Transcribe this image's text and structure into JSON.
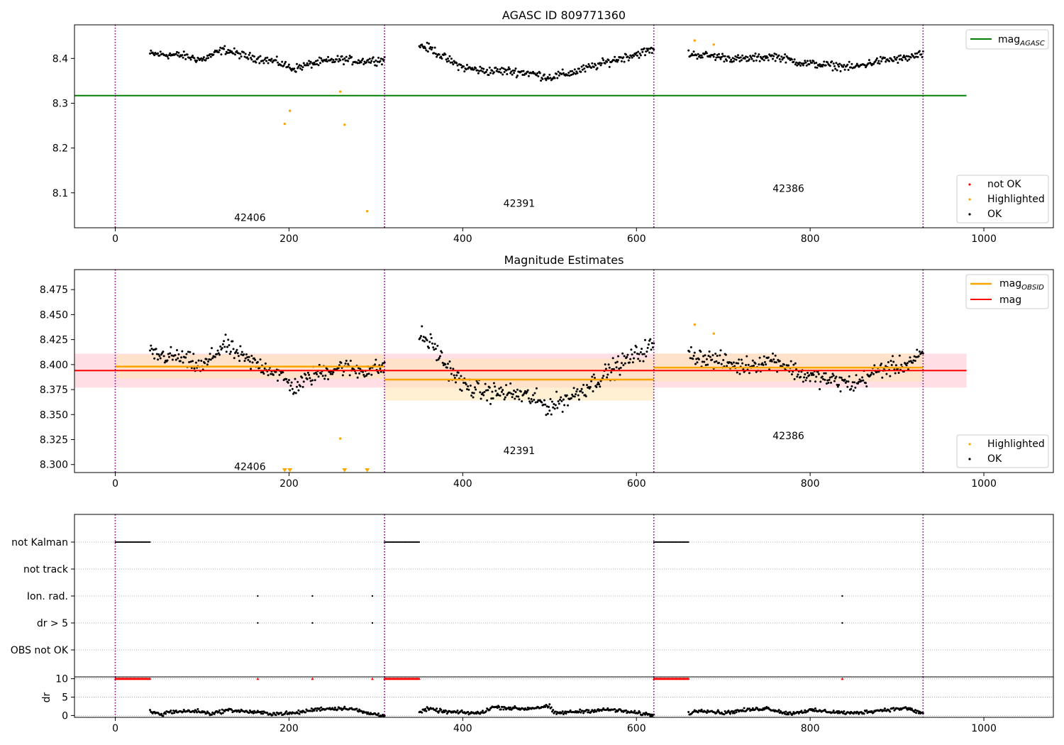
{
  "figure": {
    "background": "#ffffff"
  },
  "colors": {
    "ok": "#000000",
    "highlighted": "#ffa500",
    "not_ok": "#ff0000",
    "mag_agasc": "#008000",
    "mag": "#ff0000",
    "mag_obsid": "#ffa500",
    "obs_boundary": "#800080",
    "mag_band": "#ffc0cb",
    "obsid_band": "#ffe4b5"
  },
  "chart_data": [
    {
      "type": "scatter",
      "title": "AGASC ID 809771360",
      "xlabel": "",
      "ylabel": "",
      "xlim": [
        -47,
        1080
      ],
      "ylim": [
        8.022,
        8.475
      ],
      "xticks": [
        0,
        200,
        400,
        600,
        800,
        1000
      ],
      "yticks": [
        8.1,
        8.2,
        8.3,
        8.4
      ],
      "obs_boundaries": [
        0,
        310,
        620,
        930
      ],
      "obsid_labels": [
        {
          "text": "42406",
          "x": 155,
          "y": 8.045
        },
        {
          "text": "42391",
          "x": 465,
          "y": 8.077
        },
        {
          "text": "42386",
          "x": 775,
          "y": 8.11
        }
      ],
      "mag_agasc": {
        "value": 8.317,
        "x_range": [
          -47,
          980
        ]
      },
      "legend_upper": {
        "position": "top-right",
        "entries": [
          "mag_AGASC"
        ],
        "label_main": "mag",
        "label_sub": "AGASC"
      },
      "legend_lower": {
        "position": "bottom-right",
        "entries": [
          "not OK",
          "Highlighted",
          "OK"
        ]
      },
      "highlighted_points": {
        "x": [
          195,
          201,
          259,
          264,
          290,
          667,
          689
        ],
        "y": [
          8.254,
          8.283,
          8.326,
          8.252,
          8.059,
          8.44,
          8.431
        ]
      },
      "series_ok": [
        {
          "x_range": [
            40,
            310
          ],
          "knots_x": [
            40,
            75,
            100,
            125,
            150,
            185,
            205,
            230,
            260,
            280,
            310
          ],
          "knots_y": [
            8.41,
            8.407,
            8.397,
            8.42,
            8.405,
            8.393,
            8.377,
            8.39,
            8.398,
            8.394,
            8.397
          ],
          "noise": 0.0055
        },
        {
          "x_range": [
            350,
            620
          ],
          "knots_x": [
            350,
            365,
            380,
            400,
            425,
            450,
            475,
            500,
            525,
            550,
            575,
            600,
            620
          ],
          "knots_y": [
            8.43,
            8.42,
            8.4,
            8.38,
            8.372,
            8.372,
            8.368,
            8.358,
            8.368,
            8.382,
            8.397,
            8.41,
            8.42
          ],
          "noise": 0.006
        },
        {
          "x_range": [
            660,
            930
          ],
          "knots_x": [
            660,
            690,
            720,
            760,
            790,
            820,
            850,
            880,
            910,
            930
          ],
          "knots_y": [
            8.41,
            8.405,
            8.398,
            8.405,
            8.39,
            8.385,
            8.38,
            8.395,
            8.4,
            8.41
          ],
          "noise": 0.0055
        }
      ]
    },
    {
      "type": "scatter",
      "title": "Magnitude Estimates",
      "xlabel": "",
      "ylabel": "",
      "xlim": [
        -47,
        1080
      ],
      "ylim": [
        8.292,
        8.495
      ],
      "xticks": [
        0,
        200,
        400,
        600,
        800,
        1000
      ],
      "yticks": [
        8.3,
        8.325,
        8.35,
        8.375,
        8.4,
        8.425,
        8.45,
        8.475
      ],
      "ytick_labels": [
        "8.300",
        "8.325",
        "8.350",
        "8.375",
        "8.400",
        "8.425",
        "8.450",
        "8.475"
      ],
      "obs_boundaries": [
        0,
        310,
        620,
        930
      ],
      "obsid_labels": [
        {
          "text": "42406",
          "x": 155,
          "y": 8.298
        },
        {
          "text": "42391",
          "x": 465,
          "y": 8.314
        },
        {
          "text": "42386",
          "x": 775,
          "y": 8.329
        }
      ],
      "mag": {
        "value": 8.394,
        "band": [
          8.377,
          8.411
        ],
        "x_range": [
          -47,
          980
        ]
      },
      "mag_obsid": [
        {
          "x_range": [
            0,
            310
          ],
          "value": 8.398,
          "band": [
            8.386,
            8.41
          ]
        },
        {
          "x_range": [
            310,
            620
          ],
          "value": 8.385,
          "band": [
            8.364,
            8.406
          ]
        },
        {
          "x_range": [
            620,
            930
          ],
          "value": 8.397,
          "band": [
            8.383,
            8.411
          ]
        }
      ],
      "legend_upper": {
        "position": "top-right",
        "entries": [
          "mag_OBSID",
          "mag"
        ],
        "label_main": "mag",
        "label_sub": "OBSID",
        "label_mag": "mag"
      },
      "legend_lower": {
        "position": "bottom-right",
        "entries": [
          "Highlighted",
          "OK"
        ]
      },
      "highlighted_points": {
        "x": [
          259,
          667,
          689
        ],
        "y": [
          8.326,
          8.44,
          8.431
        ]
      },
      "off_scale_markers": {
        "x": [
          195,
          201,
          264,
          290
        ]
      },
      "series_ok": [
        {
          "x_range": [
            40,
            310
          ],
          "knots_x": [
            40,
            75,
            100,
            125,
            150,
            185,
            205,
            230,
            260,
            280,
            310
          ],
          "knots_y": [
            8.41,
            8.407,
            8.397,
            8.42,
            8.405,
            8.393,
            8.377,
            8.39,
            8.398,
            8.394,
            8.397
          ],
          "noise": 0.0055
        },
        {
          "x_range": [
            350,
            620
          ],
          "knots_x": [
            350,
            365,
            380,
            400,
            425,
            450,
            475,
            500,
            525,
            550,
            575,
            600,
            620
          ],
          "knots_y": [
            8.43,
            8.42,
            8.4,
            8.38,
            8.372,
            8.372,
            8.368,
            8.358,
            8.368,
            8.382,
            8.397,
            8.41,
            8.42
          ],
          "noise": 0.006
        },
        {
          "x_range": [
            660,
            930
          ],
          "knots_x": [
            660,
            690,
            720,
            760,
            790,
            820,
            850,
            880,
            910,
            930
          ],
          "knots_y": [
            8.41,
            8.405,
            8.398,
            8.405,
            8.39,
            8.385,
            8.38,
            8.395,
            8.4,
            8.41
          ],
          "noise": 0.0055
        }
      ]
    },
    {
      "type": "scatter",
      "title": "",
      "xlabel": "",
      "ylabel": "",
      "xlim": [
        -47,
        1080
      ],
      "grid": "horizontal-dotted",
      "obs_boundaries": [
        0,
        310,
        620,
        930
      ],
      "categories": [
        "not Kalman",
        "not track",
        "Ion. rad.",
        "dr > 5",
        "OBS not OK"
      ],
      "flag_points": {
        "not Kalman": [
          [
            0,
            40
          ],
          [
            310,
            350
          ],
          [
            620,
            660
          ]
        ],
        "not track": [],
        "Ion. rad.": [
          164,
          227,
          296,
          837
        ],
        "dr > 5": [
          164,
          227,
          296,
          837
        ],
        "OBS not OK": []
      }
    },
    {
      "type": "scatter",
      "title": "",
      "xlabel": "",
      "ylabel": "dr",
      "xlim": [
        -47,
        1080
      ],
      "ylim": [
        -0.5,
        10.5
      ],
      "xticks": [
        0,
        200,
        400,
        600,
        800,
        1000
      ],
      "yticks": [
        0,
        5,
        10
      ],
      "grid": "horizontal-dotted",
      "obs_boundaries": [
        0,
        310,
        620,
        930
      ],
      "capped_value": 10,
      "capped_points": {
        "x_ranges": [
          [
            0,
            40
          ],
          [
            310,
            350
          ],
          [
            620,
            660
          ]
        ],
        "x": [
          164,
          227,
          296,
          837
        ]
      },
      "series_ok": [
        {
          "x_range": [
            40,
            310
          ],
          "knots_x": [
            40,
            55,
            60,
            95,
            110,
            130,
            180,
            205,
            235,
            270,
            290,
            310
          ],
          "knots_y": [
            1.0,
            0.2,
            1.0,
            1.2,
            0.5,
            1.5,
            0.5,
            0.6,
            1.8,
            2.0,
            0.6,
            0.1
          ],
          "noise": 0.3
        },
        {
          "x_range": [
            350,
            620
          ],
          "knots_x": [
            350,
            360,
            380,
            420,
            435,
            470,
            500,
            505,
            540,
            570,
            620
          ],
          "knots_y": [
            0.8,
            1.8,
            1.0,
            0.6,
            2.3,
            1.8,
            2.5,
            0.6,
            1.2,
            1.6,
            0.1
          ],
          "noise": 0.3
        },
        {
          "x_range": [
            660,
            930
          ],
          "knots_x": [
            660,
            675,
            700,
            720,
            750,
            775,
            800,
            850,
            880,
            910,
            930
          ],
          "knots_y": [
            0.6,
            1.5,
            0.7,
            1.3,
            2.0,
            0.5,
            1.4,
            0.6,
            1.4,
            2.0,
            0.5
          ],
          "noise": 0.3
        }
      ]
    }
  ]
}
